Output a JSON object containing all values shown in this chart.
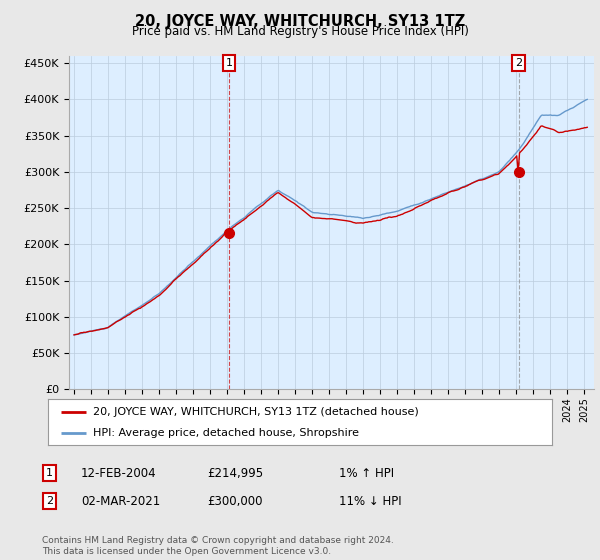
{
  "title": "20, JOYCE WAY, WHITCHURCH, SY13 1TZ",
  "subtitle": "Price paid vs. HM Land Registry's House Price Index (HPI)",
  "legend_line1": "20, JOYCE WAY, WHITCHURCH, SY13 1TZ (detached house)",
  "legend_line2": "HPI: Average price, detached house, Shropshire",
  "annotation1_label": "1",
  "annotation1_date": "12-FEB-2004",
  "annotation1_price": "£214,995",
  "annotation1_hpi": "1% ↑ HPI",
  "annotation2_label": "2",
  "annotation2_date": "02-MAR-2021",
  "annotation2_price": "£300,000",
  "annotation2_hpi": "11% ↓ HPI",
  "footer": "Contains HM Land Registry data © Crown copyright and database right 2024.\nThis data is licensed under the Open Government Licence v3.0.",
  "ylim": [
    0,
    460000
  ],
  "yticks": [
    0,
    50000,
    100000,
    150000,
    200000,
    250000,
    300000,
    350000,
    400000,
    450000
  ],
  "ytick_labels": [
    "£0",
    "£50K",
    "£100K",
    "£150K",
    "£200K",
    "£250K",
    "£300K",
    "£350K",
    "£400K",
    "£450K"
  ],
  "background_color": "#e8e8e8",
  "plot_bg_color": "#ddeeff",
  "line_color_red": "#cc0000",
  "line_color_blue": "#6699cc",
  "annotation_box_color": "#cc0000",
  "sale1_t": 2004.125,
  "sale1_v": 214995,
  "sale2_t": 2021.167,
  "sale2_v": 300000
}
